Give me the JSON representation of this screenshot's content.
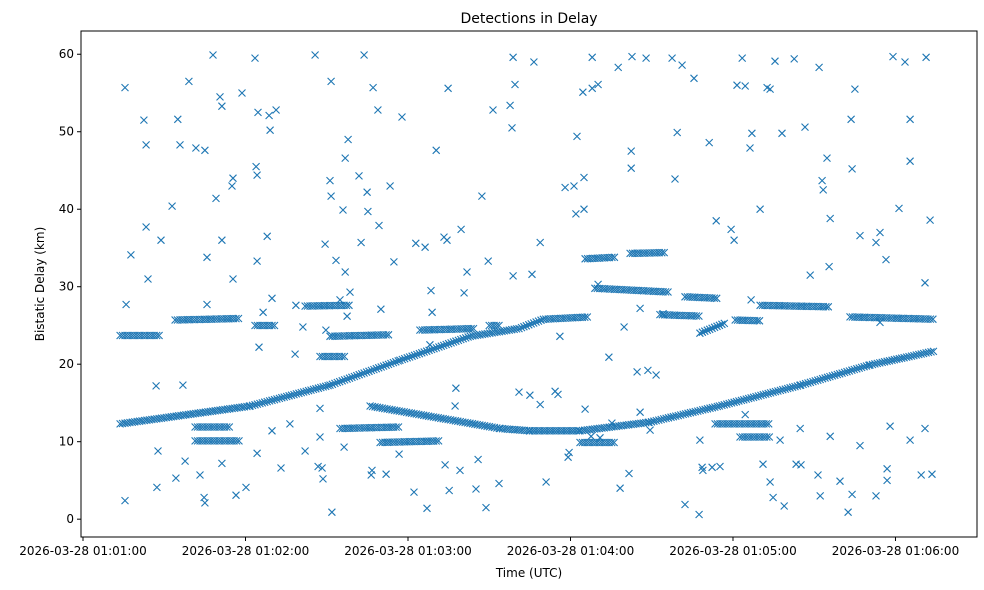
{
  "chart_data": {
    "type": "scatter",
    "title": "Detections in Delay",
    "xlabel": "Time (UTC)",
    "ylabel": "Bistatic Delay (km)",
    "x_unit": "seconds after 2026-03-28 01:01:00",
    "xlim": [
      -0.74,
      330.1
    ],
    "ylim": [
      -2.3,
      63
    ],
    "grid": false,
    "marker": "x",
    "color": "#1f77b4",
    "x_ticks": [
      {
        "value": 0,
        "label": "2026-03-28 01:01:00"
      },
      {
        "value": 60,
        "label": "2026-03-28 01:02:00"
      },
      {
        "value": 120,
        "label": "2026-03-28 01:03:00"
      },
      {
        "value": 180,
        "label": "2026-03-28 01:04:00"
      },
      {
        "value": 240,
        "label": "2026-03-28 01:05:00"
      },
      {
        "value": 300,
        "label": "2026-03-28 01:06:00"
      }
    ],
    "y_ticks": [
      {
        "value": 0,
        "label": "0"
      },
      {
        "value": 10,
        "label": "10"
      },
      {
        "value": 20,
        "label": "20"
      },
      {
        "value": 30,
        "label": "30"
      },
      {
        "value": 40,
        "label": "40"
      },
      {
        "value": 50,
        "label": "50"
      },
      {
        "value": 60,
        "label": "60"
      }
    ],
    "track_sample_step_s": 0.9,
    "tracks": [
      [
        [
          13.7,
          12.3
        ],
        [
          61.7,
          14.6
        ],
        [
          91.2,
          17.3
        ],
        [
          117,
          20.5
        ],
        [
          143,
          23.6
        ],
        [
          161,
          24.6
        ],
        [
          170,
          25.8
        ],
        [
          187,
          26.1
        ]
      ],
      [
        [
          106,
          14.6
        ],
        [
          154,
          11.7
        ],
        [
          165,
          11.4
        ],
        [
          183.5,
          11.4
        ],
        [
          209,
          12.5
        ],
        [
          235,
          14.6
        ],
        [
          265,
          17.3
        ],
        [
          290.6,
          19.9
        ],
        [
          314.6,
          21.7
        ]
      ],
      [
        [
          13.7,
          23.7
        ],
        [
          28.4,
          23.7
        ]
      ],
      [
        [
          34,
          25.7
        ],
        [
          58,
          25.9
        ]
      ],
      [
        [
          41.4,
          10.1
        ],
        [
          58,
          10.1
        ]
      ],
      [
        [
          41.4,
          11.9
        ],
        [
          54.3,
          11.9
        ]
      ],
      [
        [
          63.5,
          25
        ],
        [
          70.9,
          25
        ]
      ],
      [
        [
          82,
          27.5
        ],
        [
          98.6,
          27.6
        ]
      ],
      [
        [
          91.2,
          23.6
        ],
        [
          113.4,
          23.8
        ]
      ],
      [
        [
          87.5,
          21
        ],
        [
          96.8,
          21
        ]
      ],
      [
        [
          94.9,
          11.7
        ],
        [
          117,
          11.9
        ]
      ],
      [
        [
          109.7,
          9.9
        ],
        [
          131.8,
          10.1
        ]
      ],
      [
        [
          124.4,
          24.4
        ],
        [
          144.8,
          24.6
        ]
      ],
      [
        [
          150,
          25
        ],
        [
          154,
          25
        ]
      ],
      [
        [
          183.5,
          9.9
        ],
        [
          196.5,
          9.9
        ]
      ],
      [
        [
          185.4,
          33.6
        ],
        [
          196.5,
          33.8
        ]
      ],
      [
        [
          189,
          29.8
        ],
        [
          216.8,
          29.3
        ]
      ],
      [
        [
          202,
          34.3
        ],
        [
          215,
          34.4
        ]
      ],
      [
        [
          213,
          26.4
        ],
        [
          227.8,
          26.2
        ]
      ],
      [
        [
          222.3,
          28.7
        ],
        [
          234.5,
          28.5
        ]
      ],
      [
        [
          227.8,
          24
        ],
        [
          237,
          25.3
        ]
      ],
      [
        [
          233.4,
          12.3
        ],
        [
          253.7,
          12.3
        ]
      ],
      [
        [
          240.8,
          25.7
        ],
        [
          250,
          25.6
        ]
      ],
      [
        [
          242.6,
          10.6
        ],
        [
          253.7,
          10.6
        ]
      ],
      [
        [
          250,
          27.6
        ],
        [
          275.9,
          27.4
        ]
      ],
      [
        [
          283.2,
          26.1
        ],
        [
          314.6,
          25.8
        ]
      ]
    ],
    "points": [
      [
        15.5,
        55.7
      ],
      [
        15.5,
        2.4
      ],
      [
        15.9,
        27.7
      ],
      [
        17.7,
        34.1
      ],
      [
        22.5,
        51.5
      ],
      [
        23.3,
        48.3
      ],
      [
        23.3,
        37.7
      ],
      [
        24,
        31
      ],
      [
        27,
        17.2
      ],
      [
        27.7,
        8.8
      ],
      [
        27.3,
        4.1
      ],
      [
        28.8,
        36
      ],
      [
        32.9,
        40.4
      ],
      [
        34.3,
        5.3
      ],
      [
        35,
        51.6
      ],
      [
        35.8,
        48.3
      ],
      [
        36.9,
        17.3
      ],
      [
        37.7,
        7.5
      ],
      [
        39.1,
        56.5
      ],
      [
        41.7,
        47.9
      ],
      [
        45,
        47.6
      ],
      [
        45.8,
        33.8
      ],
      [
        45.8,
        27.7
      ],
      [
        44.7,
        2.8
      ],
      [
        45,
        2.1
      ],
      [
        48,
        59.9
      ],
      [
        49.1,
        41.4
      ],
      [
        50.6,
        54.5
      ],
      [
        51.3,
        53.3
      ],
      [
        51.3,
        36
      ],
      [
        55,
        43
      ],
      [
        55.4,
        44
      ],
      [
        55.4,
        31
      ],
      [
        56.5,
        3.1
      ],
      [
        58.7,
        55
      ],
      [
        60.2,
        4.1
      ],
      [
        63.5,
        59.5
      ],
      [
        64.3,
        44.4
      ],
      [
        63.9,
        45.5
      ],
      [
        64.3,
        33.3
      ],
      [
        64.6,
        52.5
      ],
      [
        65,
        22.2
      ],
      [
        64.3,
        8.5
      ],
      [
        68,
        36.5
      ],
      [
        68.7,
        52.1
      ],
      [
        69.1,
        50.2
      ],
      [
        71.3,
        52.8
      ],
      [
        69.8,
        28.5
      ],
      [
        66.5,
        26.7
      ],
      [
        73.1,
        6.6
      ],
      [
        76.4,
        12.3
      ],
      [
        78.3,
        21.3
      ],
      [
        81.2,
        24.8
      ],
      [
        82,
        8.8
      ],
      [
        78.6,
        27.6
      ],
      [
        85.7,
        59.9
      ],
      [
        87.5,
        14.3
      ],
      [
        87.5,
        10.6
      ],
      [
        88.3,
        6.6
      ],
      [
        88.6,
        5.2
      ],
      [
        89.7,
        24.4
      ],
      [
        89.4,
        35.5
      ],
      [
        91.6,
        56.5
      ],
      [
        91.2,
        43.7
      ],
      [
        91.6,
        41.7
      ],
      [
        91.9,
        0.9
      ],
      [
        93.4,
        33.4
      ],
      [
        96,
        39.9
      ],
      [
        96.8,
        46.6
      ],
      [
        97.9,
        49
      ],
      [
        96.8,
        31.9
      ],
      [
        97.5,
        26.2
      ],
      [
        94.9,
        28.3
      ],
      [
        101.9,
        44.3
      ],
      [
        102.7,
        35.7
      ],
      [
        103.8,
        59.9
      ],
      [
        104.9,
        42.2
      ],
      [
        105.2,
        39.7
      ],
      [
        107.1,
        55.7
      ],
      [
        108.9,
        52.8
      ],
      [
        106.7,
        6.3
      ],
      [
        106.4,
        5.7
      ],
      [
        109.3,
        37.9
      ],
      [
        110,
        27.1
      ],
      [
        111.9,
        5.8
      ],
      [
        113.4,
        43
      ],
      [
        114.8,
        33.2
      ],
      [
        117.8,
        51.9
      ],
      [
        116.7,
        8.4
      ],
      [
        122.2,
        3.5
      ],
      [
        122.9,
        35.6
      ],
      [
        126.3,
        35.1
      ],
      [
        127,
        1.4
      ],
      [
        128.5,
        29.5
      ],
      [
        128.9,
        26.7
      ],
      [
        130.4,
        47.6
      ],
      [
        133.3,
        36.4
      ],
      [
        133.7,
        7
      ],
      [
        134.4,
        36
      ],
      [
        134.8,
        55.6
      ],
      [
        135.2,
        3.7
      ],
      [
        137.7,
        16.9
      ],
      [
        139.6,
        37.4
      ],
      [
        140.7,
        29.2
      ],
      [
        141.8,
        31.9
      ],
      [
        145.1,
        3.9
      ],
      [
        147.3,
        41.7
      ],
      [
        148.8,
        1.5
      ],
      [
        149.6,
        33.3
      ],
      [
        151.4,
        52.8
      ],
      [
        153.6,
        4.6
      ],
      [
        157.7,
        53.4
      ],
      [
        158.8,
        59.6
      ],
      [
        158.4,
        50.5
      ],
      [
        159.5,
        56.1
      ],
      [
        158.8,
        31.4
      ],
      [
        161,
        16.4
      ],
      [
        166.5,
        59
      ],
      [
        165.8,
        31.6
      ],
      [
        168.8,
        35.7
      ],
      [
        171,
        4.8
      ],
      [
        165,
        16
      ],
      [
        175.4,
        16.1
      ],
      [
        178,
        42.8
      ],
      [
        181.3,
        43
      ],
      [
        179.5,
        8.6
      ],
      [
        179.1,
        8
      ],
      [
        182.4,
        49.4
      ],
      [
        182,
        39.4
      ],
      [
        184.6,
        55.1
      ],
      [
        185,
        44.1
      ],
      [
        185,
        40
      ],
      [
        188,
        59.6
      ],
      [
        188,
        55.6
      ],
      [
        187.6,
        10.7
      ],
      [
        190.2,
        56.1
      ],
      [
        190.2,
        30.3
      ],
      [
        194.2,
        20.9
      ],
      [
        197.6,
        58.3
      ],
      [
        198.3,
        4
      ],
      [
        199.8,
        24.8
      ],
      [
        201.6,
        5.9
      ],
      [
        202.7,
        59.7
      ],
      [
        202.4,
        47.5
      ],
      [
        202.4,
        45.3
      ],
      [
        204.6,
        19
      ],
      [
        207.9,
        59.5
      ],
      [
        208.6,
        19.2
      ],
      [
        211.6,
        18.6
      ],
      [
        217.5,
        59.5
      ],
      [
        218.6,
        43.9
      ],
      [
        219.4,
        49.9
      ],
      [
        221.2,
        58.6
      ],
      [
        222.3,
        1.9
      ],
      [
        225.6,
        56.9
      ],
      [
        227.5,
        0.6
      ],
      [
        228.9,
        6.3
      ],
      [
        228.6,
        6.7
      ],
      [
        231.2,
        48.6
      ],
      [
        232.3,
        6.7
      ],
      [
        233.8,
        38.5
      ],
      [
        239.3,
        37.4
      ],
      [
        240.4,
        36
      ],
      [
        241.5,
        56
      ],
      [
        243.4,
        59.5
      ],
      [
        244.5,
        55.9
      ],
      [
        246.3,
        47.9
      ],
      [
        247,
        49.8
      ],
      [
        246.7,
        28.3
      ],
      [
        250,
        40
      ],
      [
        251.1,
        7.1
      ],
      [
        253.7,
        4.8
      ],
      [
        254.8,
        2.8
      ],
      [
        252.6,
        55.7
      ],
      [
        253.7,
        55.5
      ],
      [
        255.5,
        59.1
      ],
      [
        258.1,
        49.8
      ],
      [
        258.9,
        1.7
      ],
      [
        262.6,
        59.4
      ],
      [
        263.3,
        7.1
      ],
      [
        265.1,
        7
      ],
      [
        266.6,
        50.6
      ],
      [
        268.5,
        31.5
      ],
      [
        271.8,
        58.3
      ],
      [
        273.3,
        42.5
      ],
      [
        272.9,
        43.7
      ],
      [
        274.7,
        46.6
      ],
      [
        275.9,
        38.8
      ],
      [
        271.4,
        5.7
      ],
      [
        272.2,
        3
      ],
      [
        275.5,
        32.6
      ],
      [
        279.5,
        4.9
      ],
      [
        282.5,
        0.9
      ],
      [
        284,
        3.2
      ],
      [
        283.6,
        51.6
      ],
      [
        285,
        55.5
      ],
      [
        284,
        45.2
      ],
      [
        286.9,
        36.6
      ],
      [
        292.8,
        3
      ],
      [
        292.8,
        35.7
      ],
      [
        294.3,
        37
      ],
      [
        296.5,
        33.5
      ],
      [
        296.9,
        6.5
      ],
      [
        296.9,
        5
      ],
      [
        299.1,
        59.7
      ],
      [
        301.3,
        40.1
      ],
      [
        303.5,
        59
      ],
      [
        305.4,
        51.6
      ],
      [
        305.4,
        46.2
      ],
      [
        309.5,
        5.7
      ],
      [
        311.3,
        59.6
      ],
      [
        310.9,
        30.5
      ],
      [
        312.8,
        38.6
      ],
      [
        313.5,
        5.8
      ],
      [
        43.2,
        5.7
      ],
      [
        51.3,
        7.2
      ],
      [
        69.8,
        11.4
      ],
      [
        86.8,
        6.8
      ],
      [
        96.4,
        9.3
      ],
      [
        128.1,
        22.5
      ],
      [
        139.2,
        6.3
      ],
      [
        137.4,
        14.6
      ],
      [
        145.9,
        7.7
      ],
      [
        168.8,
        14.8
      ],
      [
        174.3,
        16.5
      ],
      [
        185.4,
        14.2
      ],
      [
        195.3,
        12.4
      ],
      [
        205.7,
        13.8
      ],
      [
        209.4,
        11.5
      ],
      [
        227.8,
        10.2
      ],
      [
        235.2,
        6.8
      ],
      [
        244.5,
        13.5
      ],
      [
        257.4,
        10.2
      ],
      [
        264.8,
        11.7
      ],
      [
        275.9,
        10.7
      ],
      [
        286.9,
        9.5
      ],
      [
        298,
        12
      ],
      [
        305.4,
        10.2
      ],
      [
        310.9,
        11.7
      ],
      [
        98.6,
        29.3
      ],
      [
        176.1,
        23.6
      ],
      [
        190.9,
        10.5
      ],
      [
        214.2,
        26.5
      ],
      [
        205.7,
        27.2
      ],
      [
        294.3,
        25.4
      ]
    ]
  }
}
